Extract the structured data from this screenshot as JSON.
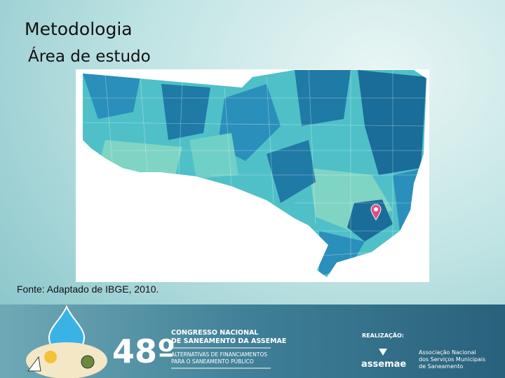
{
  "header": {
    "title": "Metodologia",
    "subtitle": "Área de estudo"
  },
  "map": {
    "source": "Fonte: Adaptado de IBGE, 2010."
  },
  "footer": {
    "edition": "48º",
    "congress": [
      "CONGRESSO NACIONAL",
      "DE SANEAMENTO DA ASSEMAE"
    ],
    "theme": [
      "ALTERNATIVAS DE FINANCIAMENTOS",
      "PARA O SANEAMENTO PÚBLICO"
    ],
    "organizer_label": "REALIZAÇÃO:",
    "organizer_logo": "assemae",
    "organizer_name": [
      "Associação Nacional",
      "dos Serviços Municipais",
      "de Saneamento"
    ]
  }
}
